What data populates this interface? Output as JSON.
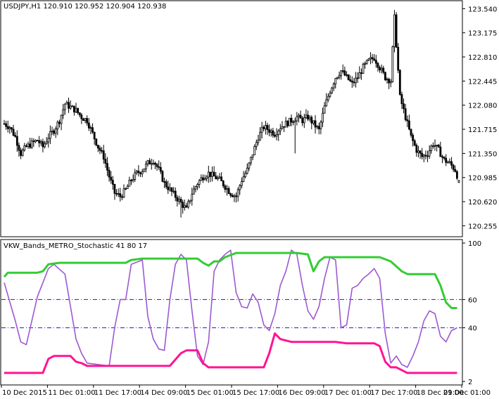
{
  "chart_data": [
    {
      "type": "candlestick",
      "title": "USDJPY,H1  120.910 120.952 120.904 120.938",
      "symbol": "USDJPY",
      "timeframe": "H1",
      "last_bar": {
        "open": 120.91,
        "high": 120.952,
        "low": 120.904,
        "close": 120.938
      },
      "y_ticks": [
        123.54,
        123.175,
        122.81,
        122.445,
        122.08,
        121.715,
        121.35,
        120.985,
        120.62,
        120.255
      ],
      "ylim": [
        120.1,
        123.65
      ],
      "close_path": [
        [
          0,
          121.8
        ],
        [
          3,
          121.75
        ],
        [
          6,
          121.6
        ],
        [
          9,
          121.35
        ],
        [
          12,
          121.45
        ],
        [
          15,
          121.5
        ],
        [
          18,
          121.55
        ],
        [
          21,
          121.45
        ],
        [
          24,
          121.6
        ],
        [
          27,
          121.7
        ],
        [
          30,
          121.85
        ],
        [
          33,
          122.1
        ],
        [
          36,
          122.05
        ],
        [
          39,
          122.0
        ],
        [
          42,
          121.9
        ],
        [
          45,
          121.85
        ],
        [
          48,
          121.65
        ],
        [
          51,
          121.45
        ],
        [
          54,
          121.3
        ],
        [
          57,
          121.0
        ],
        [
          60,
          120.75
        ],
        [
          63,
          120.7
        ],
        [
          66,
          120.8
        ],
        [
          69,
          120.95
        ],
        [
          72,
          121.05
        ],
        [
          75,
          121.1
        ],
        [
          78,
          121.2
        ],
        [
          81,
          121.25
        ],
        [
          84,
          121.1
        ],
        [
          87,
          120.9
        ],
        [
          90,
          120.8
        ],
        [
          93,
          120.7
        ],
        [
          96,
          120.6
        ],
        [
          99,
          120.5
        ],
        [
          102,
          120.75
        ],
        [
          105,
          120.9
        ],
        [
          108,
          121.0
        ],
        [
          111,
          121.05
        ],
        [
          114,
          121.0
        ],
        [
          117,
          120.95
        ],
        [
          120,
          120.85
        ],
        [
          123,
          120.75
        ],
        [
          126,
          120.7
        ],
        [
          129,
          120.95
        ],
        [
          132,
          121.1
        ],
        [
          135,
          121.35
        ],
        [
          138,
          121.6
        ],
        [
          141,
          121.75
        ],
        [
          144,
          121.7
        ],
        [
          147,
          121.65
        ],
        [
          150,
          121.75
        ],
        [
          153,
          121.8
        ],
        [
          156,
          121.85
        ],
        [
          159,
          121.9
        ],
        [
          162,
          121.85
        ],
        [
          165,
          121.9
        ],
        [
          168,
          121.8
        ],
        [
          171,
          121.7
        ],
        [
          174,
          122.05
        ],
        [
          177,
          122.3
        ],
        [
          180,
          122.5
        ],
        [
          183,
          122.6
        ],
        [
          186,
          122.5
        ],
        [
          189,
          122.4
        ],
        [
          192,
          122.5
        ],
        [
          195,
          122.65
        ],
        [
          198,
          122.75
        ],
        [
          201,
          122.8
        ],
        [
          204,
          122.65
        ],
        [
          207,
          122.5
        ],
        [
          210,
          122.45
        ],
        [
          212,
          123.4
        ],
        [
          215,
          122.2
        ],
        [
          218,
          121.9
        ],
        [
          221,
          121.6
        ],
        [
          224,
          121.4
        ],
        [
          227,
          121.3
        ],
        [
          230,
          121.35
        ],
        [
          233,
          121.5
        ],
        [
          236,
          121.4
        ],
        [
          239,
          121.25
        ],
        [
          242,
          121.2
        ],
        [
          245,
          121.1
        ],
        [
          247,
          120.94
        ]
      ],
      "x_labels": [
        "10 Dec 2015",
        "11 Dec 01:00",
        "11 Dec 17:00",
        "14 Dec 09:00",
        "15 Dec 01:00",
        "15 Dec 17:00",
        "16 Dec 09:00",
        "17 Dec 01:00",
        "17 Dec 17:00",
        "18 Dec 09:00",
        "21 Dec 01:00"
      ]
    },
    {
      "type": "line",
      "title": "VKW_Bands_METRO_Stochastic 41 80 17",
      "y_ticks": [
        100,
        60,
        40,
        2
      ],
      "ylim": [
        2,
        100
      ],
      "levels": [
        60,
        40
      ],
      "series": [
        {
          "color": "#9c59d1",
          "points": [
            [
              0,
              72
            ],
            [
              6,
              45
            ],
            [
              9,
              30
            ],
            [
              12,
              28
            ],
            [
              18,
              62
            ],
            [
              24,
              82
            ],
            [
              27,
              85
            ],
            [
              33,
              78
            ],
            [
              36,
              55
            ],
            [
              39,
              32
            ],
            [
              42,
              22
            ],
            [
              45,
              15
            ],
            [
              51,
              14
            ],
            [
              57,
              13
            ],
            [
              60,
              40
            ],
            [
              63,
              60
            ],
            [
              66,
              60
            ],
            [
              69,
              85
            ],
            [
              75,
              88
            ],
            [
              78,
              48
            ],
            [
              81,
              32
            ],
            [
              84,
              25
            ],
            [
              87,
              24
            ],
            [
              90,
              60
            ],
            [
              93,
              85
            ],
            [
              96,
              92
            ],
            [
              99,
              88
            ],
            [
              102,
              52
            ],
            [
              105,
              20
            ],
            [
              108,
              14
            ],
            [
              111,
              30
            ],
            [
              114,
              80
            ],
            [
              117,
              88
            ],
            [
              120,
              92
            ],
            [
              123,
              95
            ],
            [
              126,
              65
            ],
            [
              129,
              55
            ],
            [
              132,
              54
            ],
            [
              135,
              64
            ],
            [
              138,
              58
            ],
            [
              141,
              42
            ],
            [
              144,
              38
            ],
            [
              147,
              50
            ],
            [
              150,
              70
            ],
            [
              153,
              80
            ],
            [
              156,
              95
            ],
            [
              159,
              92
            ],
            [
              162,
              70
            ],
            [
              165,
              52
            ],
            [
              168,
              46
            ],
            [
              171,
              55
            ],
            [
              174,
              75
            ],
            [
              177,
              90
            ],
            [
              180,
              88
            ],
            [
              183,
              40
            ],
            [
              186,
              42
            ],
            [
              189,
              68
            ],
            [
              192,
              70
            ],
            [
              195,
              75
            ],
            [
              198,
              78
            ],
            [
              201,
              82
            ],
            [
              204,
              75
            ],
            [
              207,
              36
            ],
            [
              210,
              15
            ],
            [
              213,
              20
            ],
            [
              216,
              14
            ],
            [
              219,
              12
            ],
            [
              222,
              20
            ],
            [
              225,
              30
            ],
            [
              228,
              45
            ],
            [
              231,
              52
            ],
            [
              234,
              50
            ],
            [
              237,
              34
            ],
            [
              240,
              30
            ],
            [
              243,
              38
            ],
            [
              246,
              40
            ]
          ]
        },
        {
          "color": "#32cd32",
          "points": [
            [
              0,
              76
            ],
            [
              2,
              79
            ],
            [
              12,
              79
            ],
            [
              18,
              79
            ],
            [
              21,
              80
            ],
            [
              24,
              85
            ],
            [
              30,
              86
            ],
            [
              60,
              86
            ],
            [
              66,
              86
            ],
            [
              69,
              88
            ],
            [
              75,
              89
            ],
            [
              105,
              89
            ],
            [
              108,
              86
            ],
            [
              111,
              84
            ],
            [
              114,
              87
            ],
            [
              117,
              87
            ],
            [
              120,
              90
            ],
            [
              126,
              93
            ],
            [
              159,
              93
            ],
            [
              165,
              92
            ],
            [
              168,
              80
            ],
            [
              171,
              87
            ],
            [
              174,
              90
            ],
            [
              204,
              90
            ],
            [
              210,
              87
            ],
            [
              216,
              80
            ],
            [
              219,
              78
            ],
            [
              228,
              78
            ],
            [
              234,
              78
            ],
            [
              237,
              70
            ],
            [
              240,
              58
            ],
            [
              243,
              54
            ],
            [
              246,
              54
            ]
          ]
        },
        {
          "color": "#ff1493",
          "points": [
            [
              0,
              8
            ],
            [
              12,
              8
            ],
            [
              21,
              8
            ],
            [
              24,
              18
            ],
            [
              27,
              20
            ],
            [
              36,
              20
            ],
            [
              39,
              16
            ],
            [
              42,
              15
            ],
            [
              45,
              13
            ],
            [
              51,
              13
            ],
            [
              90,
              13
            ],
            [
              96,
              22
            ],
            [
              99,
              24
            ],
            [
              105,
              24
            ],
            [
              108,
              15
            ],
            [
              111,
              12
            ],
            [
              141,
              12
            ],
            [
              144,
              22
            ],
            [
              147,
              36
            ],
            [
              150,
              32
            ],
            [
              156,
              30
            ],
            [
              180,
              30
            ],
            [
              186,
              29
            ],
            [
              201,
              29
            ],
            [
              204,
              27
            ],
            [
              207,
              16
            ],
            [
              210,
              12
            ],
            [
              213,
              12
            ],
            [
              219,
              8
            ],
            [
              246,
              8
            ]
          ]
        }
      ]
    }
  ]
}
